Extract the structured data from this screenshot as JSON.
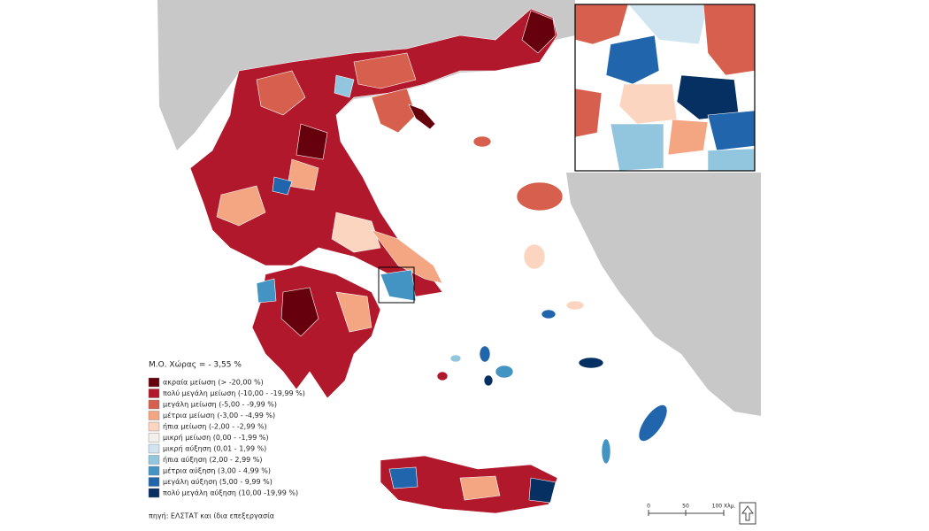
{
  "map": {
    "average_label": "Μ.Ο. Χώρας = - 3,55 %",
    "legend": [
      {
        "label": "ακραία μείωση (> -20,00 %)",
        "color": "#67000d"
      },
      {
        "label": "πολύ μεγάλη μείωση (-10,00 - -19,99 %)",
        "color": "#b2182b"
      },
      {
        "label": "μεγάλη μείωση (-5,00 - -9,99 %)",
        "color": "#d6604d"
      },
      {
        "label": "μέτρια μείωση (-3,00 - -4,99 %)",
        "color": "#f4a582"
      },
      {
        "label": "ήπια μείωση (-2,00 - -2,99 %)",
        "color": "#fbd5bf"
      },
      {
        "label": "μικρή μείωση (0,00 - -1,99 %)",
        "color": "#f3efea"
      },
      {
        "label": "μικρή αύξηση (0,01 - 1,99 %)",
        "color": "#d1e5f0"
      },
      {
        "label": "ήπια αύξηση (2,00 - 2,99 %)",
        "color": "#92c5de"
      },
      {
        "label": "μέτρια αύξηση (3,00 - 4,99 %)",
        "color": "#4393c3"
      },
      {
        "label": "μεγάλη αύξηση (5,00 - 9,99 %)",
        "color": "#2166ac"
      },
      {
        "label": "πολύ μεγάλη αύξηση (10,00 -19,99 %)",
        "color": "#053061"
      }
    ],
    "source": "πηγή: ΕΛΣΤΑΤ και ίδια επεξεργασία",
    "scale_labels": [
      "0",
      "50",
      "100 Χλμ."
    ]
  }
}
